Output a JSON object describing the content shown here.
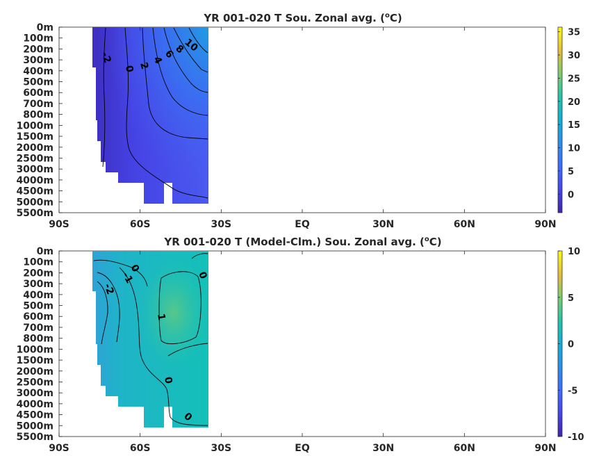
{
  "chart_data": [
    {
      "type": "heatmap",
      "title": "YR 001-020 T Sou. Zonal avg. (ºC)",
      "title_main": "YR 001-020 T Sou. Zonal avg. (",
      "title_sup": "o",
      "title_end": "C)",
      "x_ticks": [
        "90S",
        "60S",
        "30S",
        "EQ",
        "30N",
        "60N",
        "90N"
      ],
      "y_ticks": [
        "0m",
        "100m",
        "200m",
        "300m",
        "400m",
        "500m",
        "600m",
        "700m",
        "800m",
        "1000m",
        "1500m",
        "2000m",
        "2500m",
        "3000m",
        "4000m",
        "4500m",
        "5000m",
        "5500m"
      ],
      "colorbar": {
        "ticks": [
          35,
          30,
          25,
          20,
          15,
          10,
          5,
          0
        ],
        "range": [
          -4,
          36
        ]
      },
      "data_extent_lat": [
        -78,
        -35
      ],
      "contour_labels": [
        "-2",
        "0",
        "2",
        "4",
        "6",
        "8",
        "10"
      ],
      "colormap": "parula"
    },
    {
      "type": "heatmap",
      "title": "YR 001-020 T (Model-Clm.) Sou. Zonal avg. (ºC)",
      "title_main": "YR 001-020 T (Model-Clm.) Sou. Zonal avg. (",
      "title_sup": "o",
      "title_end": "C)",
      "x_ticks": [
        "90S",
        "60S",
        "30S",
        "EQ",
        "30N",
        "60N",
        "90N"
      ],
      "y_ticks": [
        "0m",
        "100m",
        "200m",
        "300m",
        "400m",
        "500m",
        "600m",
        "700m",
        "800m",
        "1000m",
        "1500m",
        "2000m",
        "2500m",
        "3000m",
        "4000m",
        "4500m",
        "5000m",
        "5500m"
      ],
      "colorbar": {
        "ticks": [
          10,
          5,
          0,
          -5,
          -10
        ],
        "range": [
          -10,
          10
        ]
      },
      "data_extent_lat": [
        -78,
        -35
      ],
      "contour_labels": [
        "0",
        "-1",
        "-2",
        "0",
        "1",
        "0",
        "0"
      ],
      "colormap": "parula"
    }
  ]
}
